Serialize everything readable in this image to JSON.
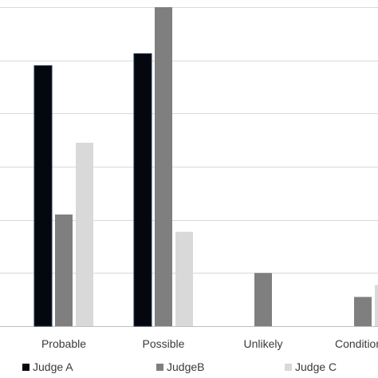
{
  "chart_data": {
    "type": "bar",
    "categories": [
      "Probable",
      "Possible",
      "Unlikely",
      "Conditional"
    ],
    "series": [
      {
        "name": "Judge A",
        "values": [
          98,
          102.5,
          0,
          0
        ],
        "color": "#05070f"
      },
      {
        "name": "JudgeB",
        "values": [
          42,
          120,
          20,
          11
        ],
        "color": "#7f7f7f"
      },
      {
        "name": "Judge C",
        "values": [
          69,
          35.5,
          0,
          15.5
        ],
        "color": "#d9d9d9"
      }
    ],
    "title": "",
    "xlabel": "",
    "ylabel": "",
    "ylim": [
      0,
      120
    ],
    "y_gridlines": [
      0,
      20,
      40,
      60,
      80,
      100,
      120
    ],
    "grid": true,
    "legend_position": "bottom"
  }
}
